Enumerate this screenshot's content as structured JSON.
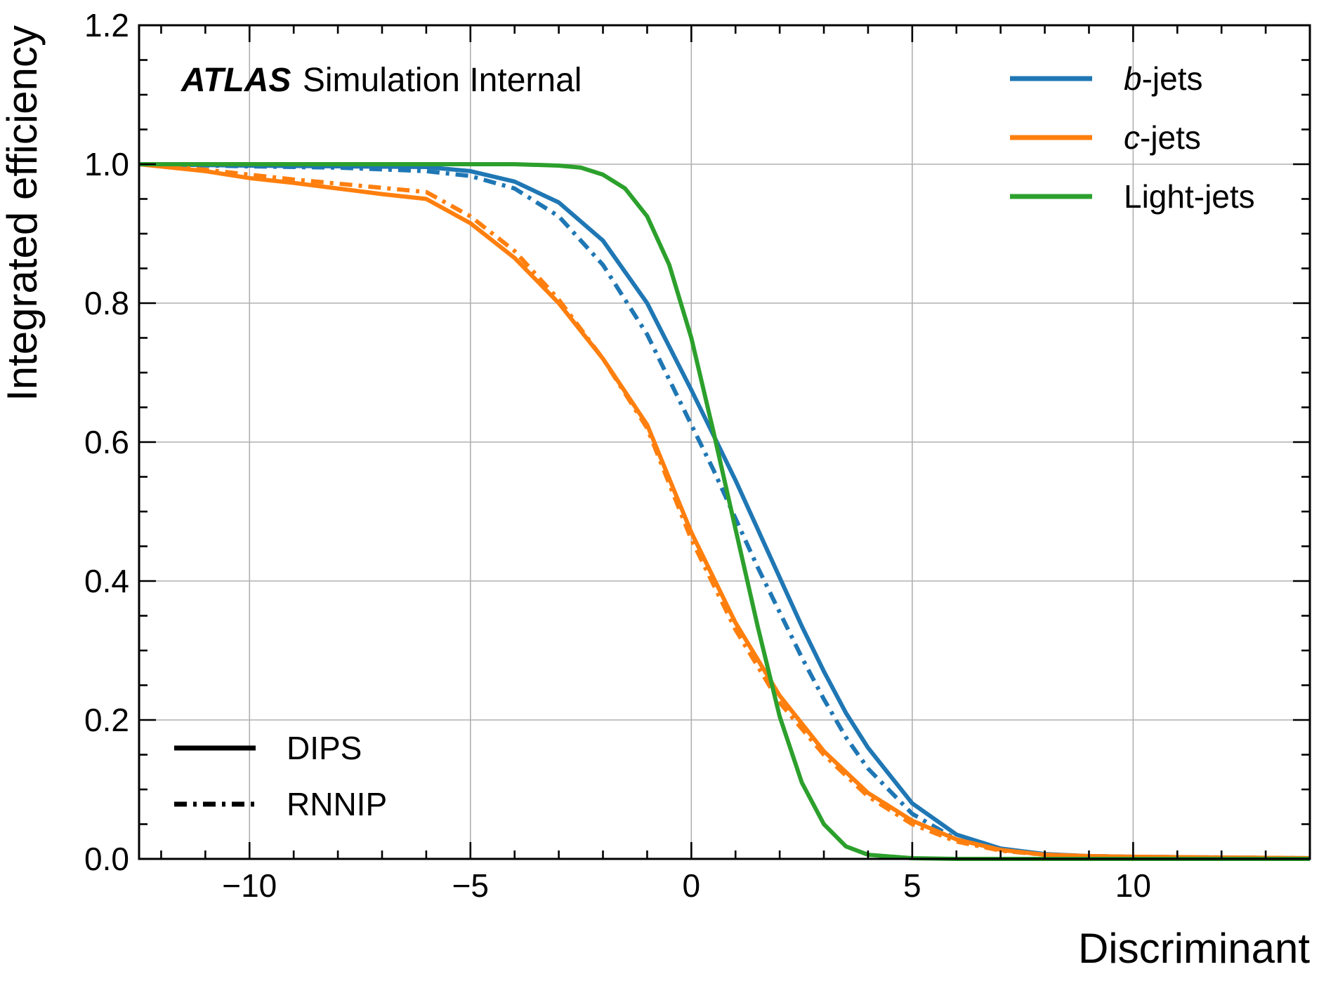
{
  "chart_data": {
    "type": "line",
    "annotation": {
      "atlas": "ATLAS",
      "text": "Simulation Internal"
    },
    "xlabel": "Discriminant",
    "ylabel": "Integrated efficiency",
    "xlim": [
      -12.5,
      14
    ],
    "ylim": [
      0,
      1.2
    ],
    "xticks": [
      -10,
      -5,
      0,
      5,
      10
    ],
    "xtick_labels": [
      "−10",
      "−5",
      "0",
      "5",
      "10"
    ],
    "yticks": [
      0.0,
      0.2,
      0.4,
      0.6,
      0.8,
      1.0,
      1.2
    ],
    "ytick_labels": [
      "0.0",
      "0.2",
      "0.4",
      "0.6",
      "0.8",
      "1.0",
      "1.2"
    ],
    "grid": true,
    "legend_flavour": {
      "placement": "top-right",
      "entries": [
        {
          "italic": "b",
          "rest": "-jets",
          "color": "#1f77b4"
        },
        {
          "italic": "c",
          "rest": "-jets",
          "color": "#ff7f0e"
        },
        {
          "italic": "",
          "rest": "Light-jets",
          "color": "#2ca02c"
        }
      ]
    },
    "legend_style": {
      "placement": "bottom-left",
      "entries": [
        {
          "label": "DIPS",
          "linestyle": "solid"
        },
        {
          "label": "RNNIP",
          "linestyle": "dashdot"
        }
      ]
    },
    "series": [
      {
        "flavour": "b-jets",
        "tagger": "DIPS",
        "color": "#1f77b4",
        "linestyle": "solid",
        "x": [
          -12.5,
          -10,
          -8,
          -6,
          -5,
          -4,
          -3,
          -2,
          -1,
          0,
          0.5,
          1,
          1.5,
          2,
          2.5,
          3,
          3.5,
          4,
          5,
          6,
          7,
          8,
          9,
          10,
          12,
          14
        ],
        "y": [
          1.0,
          0.998,
          0.997,
          0.996,
          0.99,
          0.975,
          0.945,
          0.89,
          0.8,
          0.675,
          0.61,
          0.545,
          0.475,
          0.405,
          0.335,
          0.27,
          0.21,
          0.16,
          0.08,
          0.035,
          0.015,
          0.007,
          0.004,
          0.003,
          0.002,
          0.001
        ]
      },
      {
        "flavour": "b-jets",
        "tagger": "RNNIP",
        "color": "#1f77b4",
        "linestyle": "dashdot",
        "x": [
          -12.5,
          -10,
          -8,
          -6,
          -5,
          -4,
          -3,
          -2,
          -1,
          0,
          0.5,
          1,
          1.5,
          2,
          2.5,
          3,
          3.5,
          4,
          5,
          6,
          7,
          8,
          9,
          10,
          12,
          14
        ],
        "y": [
          1.0,
          0.997,
          0.995,
          0.99,
          0.983,
          0.965,
          0.925,
          0.855,
          0.755,
          0.625,
          0.56,
          0.49,
          0.42,
          0.355,
          0.29,
          0.23,
          0.175,
          0.13,
          0.065,
          0.028,
          0.012,
          0.006,
          0.004,
          0.003,
          0.002,
          0.001
        ]
      },
      {
        "flavour": "c-jets",
        "tagger": "DIPS",
        "color": "#ff7f0e",
        "linestyle": "solid",
        "x": [
          -12.5,
          -11,
          -10,
          -9,
          -8,
          -7,
          -6,
          -5,
          -4,
          -3,
          -2,
          -1,
          0,
          1,
          2,
          3,
          4,
          5,
          6,
          7,
          8,
          9,
          10,
          12,
          14
        ],
        "y": [
          1.0,
          0.99,
          0.98,
          0.973,
          0.965,
          0.957,
          0.95,
          0.915,
          0.865,
          0.8,
          0.72,
          0.625,
          0.47,
          0.34,
          0.235,
          0.155,
          0.095,
          0.055,
          0.028,
          0.013,
          0.006,
          0.004,
          0.003,
          0.002,
          0.001
        ]
      },
      {
        "flavour": "c-jets",
        "tagger": "RNNIP",
        "color": "#ff7f0e",
        "linestyle": "dashdot",
        "x": [
          -12.5,
          -11,
          -10,
          -9,
          -8,
          -7,
          -6,
          -5,
          -4,
          -3,
          -2,
          -1,
          0,
          1,
          2,
          3,
          4,
          5,
          6,
          7,
          8,
          9,
          10,
          12,
          14
        ],
        "y": [
          1.0,
          0.992,
          0.985,
          0.978,
          0.972,
          0.966,
          0.96,
          0.925,
          0.875,
          0.805,
          0.72,
          0.62,
          0.46,
          0.33,
          0.225,
          0.15,
          0.09,
          0.05,
          0.025,
          0.012,
          0.006,
          0.004,
          0.003,
          0.002,
          0.001
        ]
      },
      {
        "flavour": "Light-jets",
        "tagger": "DIPS",
        "color": "#2ca02c",
        "linestyle": "solid",
        "x": [
          -12.5,
          -8,
          -4,
          -3,
          -2.5,
          -2,
          -1.5,
          -1,
          -0.5,
          0,
          0.5,
          1,
          1.5,
          2,
          2.5,
          3,
          3.5,
          4,
          5,
          6,
          8,
          10,
          14
        ],
        "y": [
          1.0,
          1.0,
          1.0,
          0.998,
          0.995,
          0.985,
          0.965,
          0.925,
          0.855,
          0.75,
          0.615,
          0.475,
          0.335,
          0.205,
          0.11,
          0.05,
          0.018,
          0.006,
          0.001,
          0.0,
          0.0,
          0.0,
          0.0
        ]
      }
    ]
  }
}
